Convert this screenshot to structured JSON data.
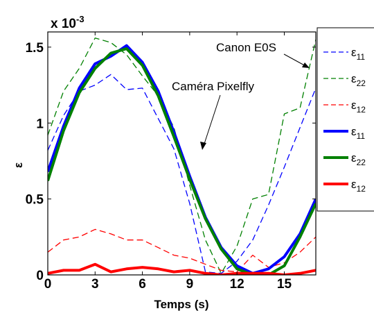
{
  "chart_data": {
    "type": "line",
    "xlabel": "Temps (s)",
    "ylabel": "ε",
    "xlim": [
      0,
      17
    ],
    "ylim": [
      0,
      0.0016
    ],
    "xticks": [
      "0",
      "3",
      "6",
      "9",
      "12",
      "15"
    ],
    "yticks": [
      "0",
      "0.5",
      "1",
      "1.5"
    ],
    "exponent_label": "x 10",
    "exponent_power": "-3",
    "annotations": [
      {
        "text": "Canon E0S",
        "points_to": "Canon E0S curves near t=17"
      },
      {
        "text": "Caméra Pixelfly",
        "points_to": "Pixelfly curves near t=9"
      }
    ],
    "series": [
      {
        "name": "ε11",
        "sym": "ε",
        "sub": "11",
        "color": "#0000ff",
        "style": "dashed",
        "width": "thin",
        "x": [
          0,
          1,
          2,
          3,
          4,
          5,
          6,
          7,
          8,
          9,
          10,
          11,
          12,
          13,
          14,
          15,
          16,
          17
        ],
        "y": [
          0.00082,
          0.00105,
          0.00121,
          0.00125,
          0.00132,
          0.00122,
          0.00123,
          0.00103,
          0.00083,
          0.00047,
          2e-05,
          1e-05,
          9e-05,
          0.00023,
          0.00046,
          0.00071,
          0.00097,
          0.00123
        ]
      },
      {
        "name": "ε22",
        "sym": "ε",
        "sub": "22",
        "color": "#008000",
        "style": "dashed",
        "width": "thin",
        "x": [
          0,
          1,
          2,
          3,
          4,
          5,
          6,
          7,
          8,
          9,
          10,
          11,
          12,
          13,
          14,
          15,
          16,
          17
        ],
        "y": [
          0.00092,
          0.00121,
          0.00136,
          0.00156,
          0.00153,
          0.00145,
          0.00131,
          0.00118,
          0.00097,
          0.00059,
          0.00023,
          1e-05,
          0.00019,
          0.0005,
          0.00053,
          0.00106,
          0.0011,
          0.00155
        ]
      },
      {
        "name": "ε12",
        "sym": "ε",
        "sub": "12",
        "color": "#ff0000",
        "style": "dashed",
        "width": "thin",
        "x": [
          0,
          1,
          2,
          3,
          4,
          5,
          6,
          7,
          8,
          9,
          10,
          11,
          12,
          13,
          14,
          15,
          16,
          17
        ],
        "y": [
          0.00015,
          0.00023,
          0.00025,
          0.0003,
          0.00027,
          0.00023,
          0.00023,
          0.00018,
          0.00013,
          0.00011,
          7e-05,
          3e-05,
          2e-05,
          0.00013,
          5e-05,
          8e-05,
          0.00015,
          0.00025
        ]
      },
      {
        "name": "ε11",
        "sym": "ε",
        "sub": "11",
        "color": "#0000ff",
        "style": "solid",
        "width": "thick",
        "x": [
          0,
          1,
          2,
          3,
          4,
          5,
          6,
          7,
          8,
          9,
          10,
          11,
          12,
          13,
          14,
          15,
          16,
          17
        ],
        "y": [
          0.00068,
          0.00098,
          0.00123,
          0.00139,
          0.00144,
          0.00151,
          0.0014,
          0.00121,
          0.00094,
          0.00065,
          0.00038,
          0.00018,
          6e-05,
          1e-05,
          4e-05,
          0.00012,
          0.00027,
          0.0005
        ]
      },
      {
        "name": "ε22",
        "sym": "ε",
        "sub": "22",
        "color": "#008000",
        "style": "solid",
        "width": "thick",
        "x": [
          0,
          1,
          2,
          3,
          4,
          5,
          6,
          7,
          8,
          9,
          10,
          11,
          12,
          13,
          14,
          15,
          16,
          17
        ],
        "y": [
          0.00062,
          0.00095,
          0.0012,
          0.00136,
          0.00146,
          0.00149,
          0.00138,
          0.00118,
          0.00091,
          0.00063,
          0.00037,
          0.00017,
          4e-05,
          0.0,
          0.0,
          6e-05,
          0.00025,
          0.00047
        ]
      },
      {
        "name": "ε12",
        "sym": "ε",
        "sub": "12",
        "color": "#ff0000",
        "style": "solid",
        "width": "thick",
        "x": [
          0,
          1,
          2,
          3,
          4,
          5,
          6,
          7,
          8,
          9,
          10,
          11,
          12,
          13,
          14,
          15,
          16,
          17
        ],
        "y": [
          1e-05,
          3e-05,
          3e-05,
          7e-05,
          2e-05,
          4e-05,
          5e-05,
          4e-05,
          2e-05,
          3e-05,
          1e-05,
          0.0,
          1e-05,
          1e-05,
          1e-05,
          0.0,
          1e-05,
          3e-05
        ]
      }
    ],
    "grid": false,
    "legend_position": "right, partially outside plot"
  }
}
